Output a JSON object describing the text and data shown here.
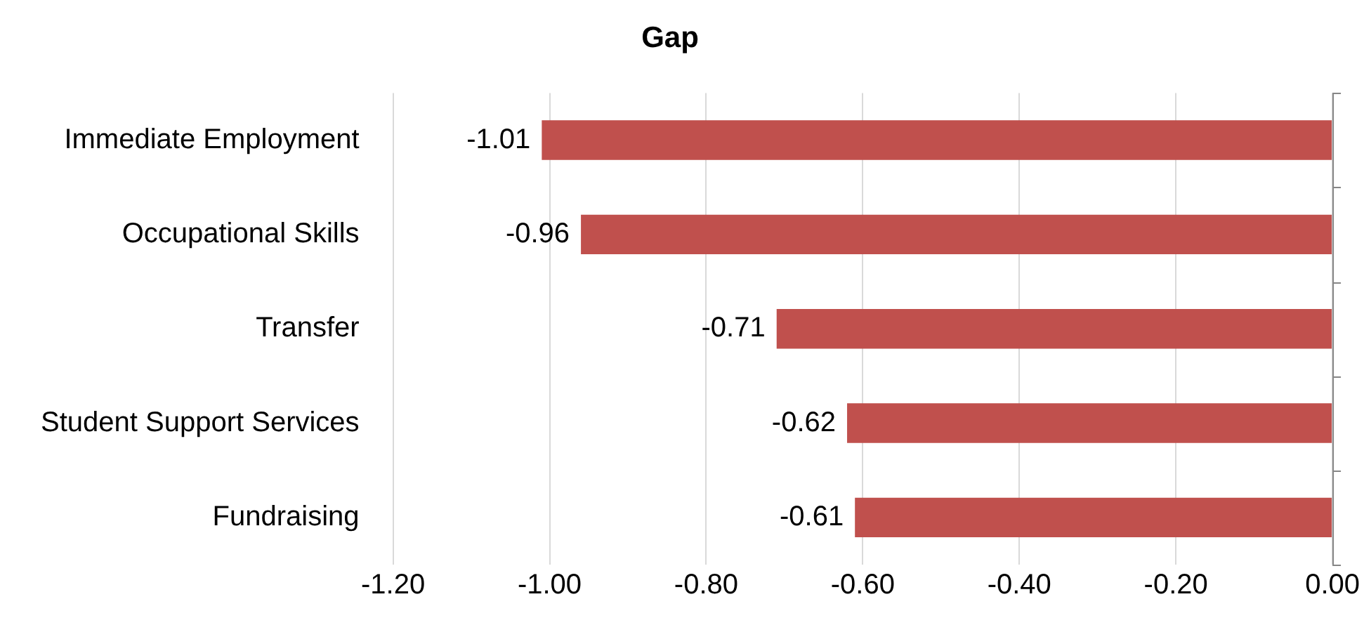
{
  "chart_data": {
    "type": "bar",
    "orientation": "horizontal",
    "title": "Gap",
    "categories": [
      "Immediate Employment",
      "Occupational Skills",
      "Transfer",
      "Student Support Services",
      "Fundraising"
    ],
    "series": [
      {
        "color": "#c0504d",
        "values": [
          -1.01,
          -0.96,
          -0.71,
          -0.62,
          -0.61
        ]
      }
    ],
    "xlim": [
      -1.2,
      0
    ],
    "xticks": [
      {
        "value": -1.2,
        "label": "-1.20"
      },
      {
        "value": -1.0,
        "label": "-1.00"
      },
      {
        "value": -0.8,
        "label": "-0.80"
      },
      {
        "value": -0.6,
        "label": "-0.60"
      },
      {
        "value": -0.4,
        "label": "-0.40"
      },
      {
        "value": -0.2,
        "label": "-0.20"
      },
      {
        "value": 0,
        "label": "0.00"
      }
    ],
    "grid": "x",
    "legend": false,
    "data_labels": true
  }
}
